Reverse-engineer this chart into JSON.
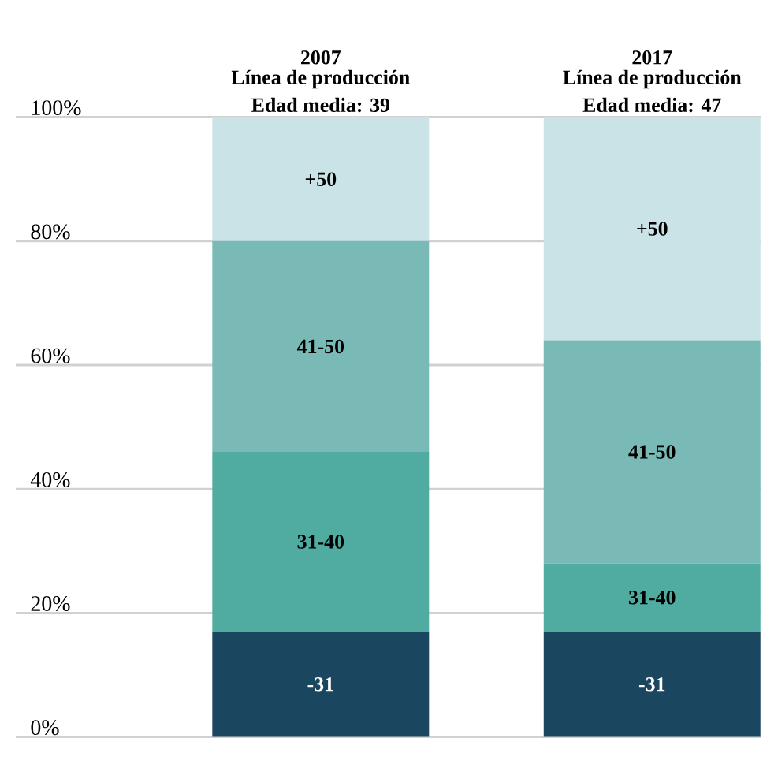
{
  "chart_data": {
    "type": "bar",
    "stacked": true,
    "categories": [
      "2007",
      "2017"
    ],
    "series": [
      {
        "name": "-31",
        "color": "#1b4660",
        "values": [
          17,
          17
        ]
      },
      {
        "name": "31-40",
        "color": "#50aba1",
        "values": [
          29,
          11
        ]
      },
      {
        "name": "41-50",
        "color": "#79bab6",
        "values": [
          34,
          36
        ]
      },
      {
        "name": "+50",
        "color": "#c9e3e7",
        "values": [
          20,
          36
        ]
      }
    ],
    "ylim": [
      0,
      100
    ],
    "yticks": [
      {
        "value": 0,
        "label": "0%"
      },
      {
        "value": 20,
        "label": "20%"
      },
      {
        "value": 40,
        "label": "40%"
      },
      {
        "value": 60,
        "label": "60%"
      },
      {
        "value": 80,
        "label": "80%"
      },
      {
        "value": 100,
        "label": "100%"
      }
    ],
    "grid": "y",
    "annotations": [
      "Línea de producción",
      "Edad media: 39",
      "Línea de producción",
      "Edad media: 47"
    ]
  }
}
